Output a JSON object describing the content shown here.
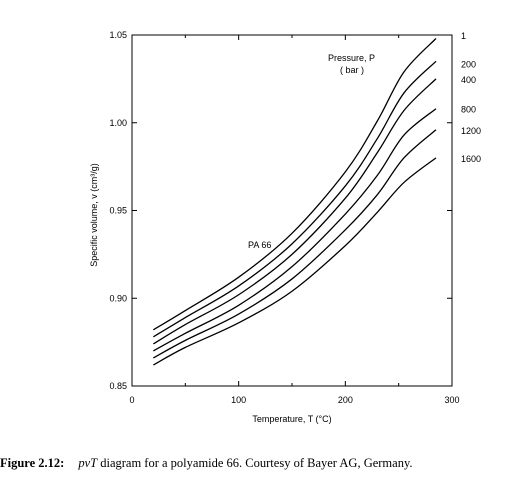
{
  "chart_data": {
    "type": "line",
    "xlabel": "Temperature, T  (°C)",
    "ylabel": "Specific volume, v (cm³/g)",
    "xlim": [
      0,
      300
    ],
    "ylim": [
      0.85,
      1.05
    ],
    "x_ticks": [
      "0",
      "100",
      "200",
      "300"
    ],
    "y_ticks": [
      "0.85",
      "0.90",
      "0.95",
      "1.00",
      "1.05"
    ],
    "grid": false,
    "annotations": {
      "material": "PA 66",
      "legend_title_line1": "Pressure,  P",
      "legend_title_line2": "( bar )"
    },
    "series": [
      {
        "name": "1",
        "x": [
          20,
          50,
          100,
          150,
          200,
          230,
          255,
          285
        ],
        "y": [
          0.882,
          0.893,
          0.912,
          0.937,
          0.972,
          1.001,
          1.029,
          1.048
        ]
      },
      {
        "name": "200",
        "x": [
          20,
          50,
          100,
          150,
          200,
          230,
          255,
          285
        ],
        "y": [
          0.878,
          0.889,
          0.907,
          0.931,
          0.964,
          0.991,
          1.017,
          1.035
        ]
      },
      {
        "name": "400",
        "x": [
          20,
          50,
          100,
          150,
          200,
          230,
          255,
          285
        ],
        "y": [
          0.874,
          0.885,
          0.902,
          0.925,
          0.957,
          0.983,
          1.007,
          1.025
        ]
      },
      {
        "name": "800",
        "x": [
          20,
          50,
          100,
          150,
          200,
          230,
          255,
          285
        ],
        "y": [
          0.87,
          0.88,
          0.896,
          0.918,
          0.948,
          0.97,
          0.993,
          1.008
        ]
      },
      {
        "name": "1200",
        "x": [
          20,
          50,
          100,
          150,
          200,
          230,
          255,
          285
        ],
        "y": [
          0.866,
          0.876,
          0.891,
          0.911,
          0.939,
          0.959,
          0.98,
          0.996
        ]
      },
      {
        "name": "1600",
        "x": [
          20,
          50,
          100,
          150,
          200,
          230,
          255,
          285
        ],
        "y": [
          0.862,
          0.872,
          0.886,
          0.904,
          0.93,
          0.949,
          0.966,
          0.98
        ]
      }
    ]
  },
  "caption": {
    "label": "Figure 2.12:",
    "variable": "pvT",
    "text": " diagram for a polyamide 66. Courtesy of Bayer AG, Germany."
  }
}
